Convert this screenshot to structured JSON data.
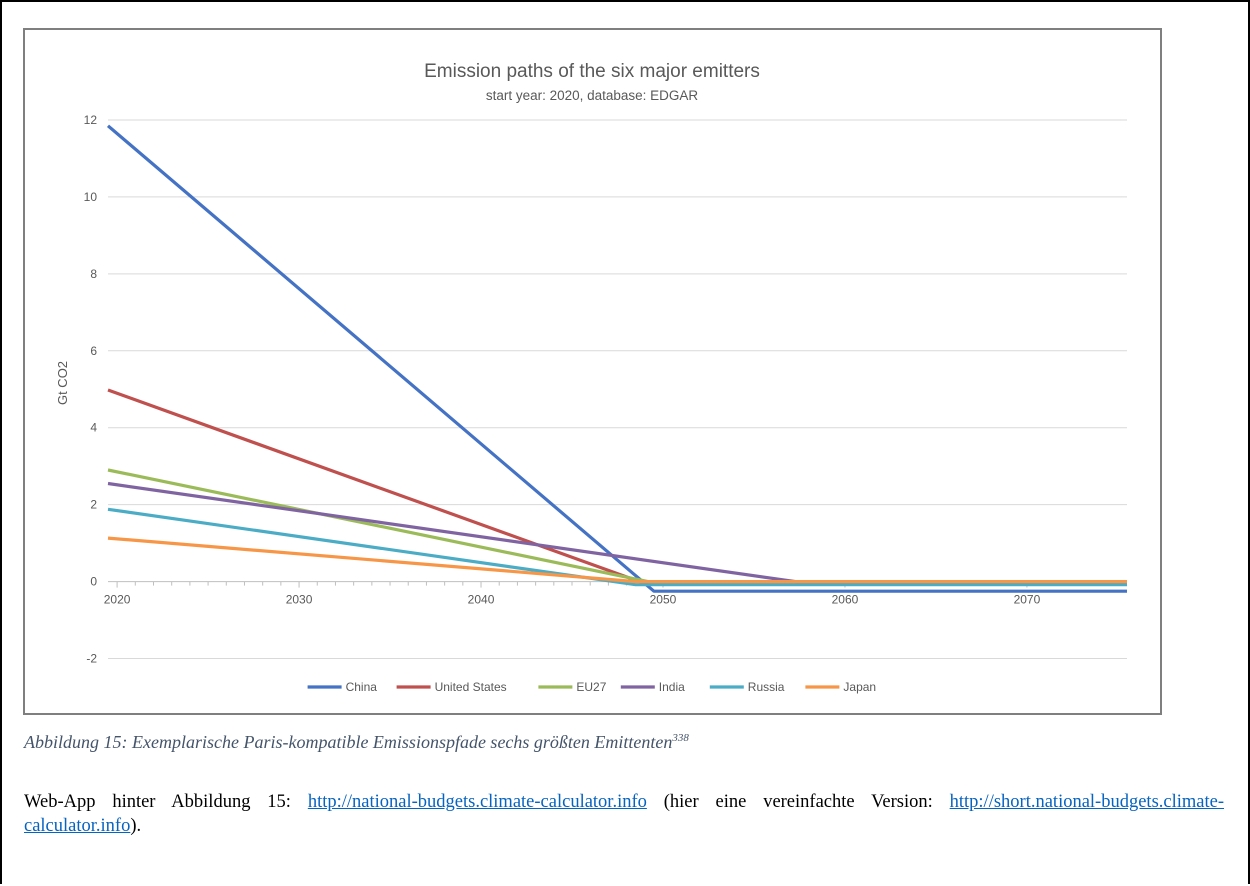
{
  "chart_data": {
    "type": "line",
    "title": "Emission paths of the six major emitters",
    "subtitle": "start year: 2020, database: EDGAR",
    "ylabel": "Gt CO2",
    "xlabel": "",
    "xlim": [
      2019.5,
      2075.5
    ],
    "ylim": [
      -3,
      12
    ],
    "yticks": [
      -2,
      0,
      2,
      4,
      6,
      8,
      10,
      12
    ],
    "xticks": [
      2020,
      2030,
      2040,
      2050,
      2060,
      2070
    ],
    "grid": true,
    "legend_position": "bottom",
    "series": [
      {
        "name": "China",
        "color": "#4472c4",
        "points": [
          [
            2019.5,
            11.85
          ],
          [
            2049.5,
            -0.25
          ],
          [
            2075.5,
            -0.25
          ]
        ]
      },
      {
        "name": "United States",
        "color": "#c0504d",
        "points": [
          [
            2019.5,
            4.98
          ],
          [
            2049.0,
            -0.05
          ],
          [
            2075.5,
            -0.05
          ]
        ]
      },
      {
        "name": "EU27",
        "color": "#9bbb59",
        "points": [
          [
            2019.5,
            2.9
          ],
          [
            2049.5,
            -0.03
          ],
          [
            2075.5,
            -0.03
          ]
        ]
      },
      {
        "name": "India",
        "color": "#8064a2",
        "points": [
          [
            2019.5,
            2.55
          ],
          [
            2058.0,
            -0.05
          ],
          [
            2075.5,
            -0.05
          ]
        ]
      },
      {
        "name": "Russia",
        "color": "#4bacc6",
        "points": [
          [
            2019.5,
            1.88
          ],
          [
            2048.5,
            -0.08
          ],
          [
            2075.5,
            -0.08
          ]
        ]
      },
      {
        "name": "Japan",
        "color": "#f79646",
        "points": [
          [
            2019.5,
            1.13
          ],
          [
            2048.5,
            0.0
          ],
          [
            2075.5,
            0.0
          ]
        ]
      }
    ]
  },
  "caption": {
    "text": "Abbildung 15: Exemplarische Paris-kompatible Emissionspfade sechs größten Emittenten",
    "footnote": "338"
  },
  "webapp": {
    "prefix": "Web-App hinter Abbildung 15: ",
    "link1": "http://national-budgets.climate-calculator.info",
    "middle": " (hier eine vereinfachte Version: ",
    "link2": "http://short.national-budgets.climate-calculator.info",
    "suffix": ")."
  }
}
